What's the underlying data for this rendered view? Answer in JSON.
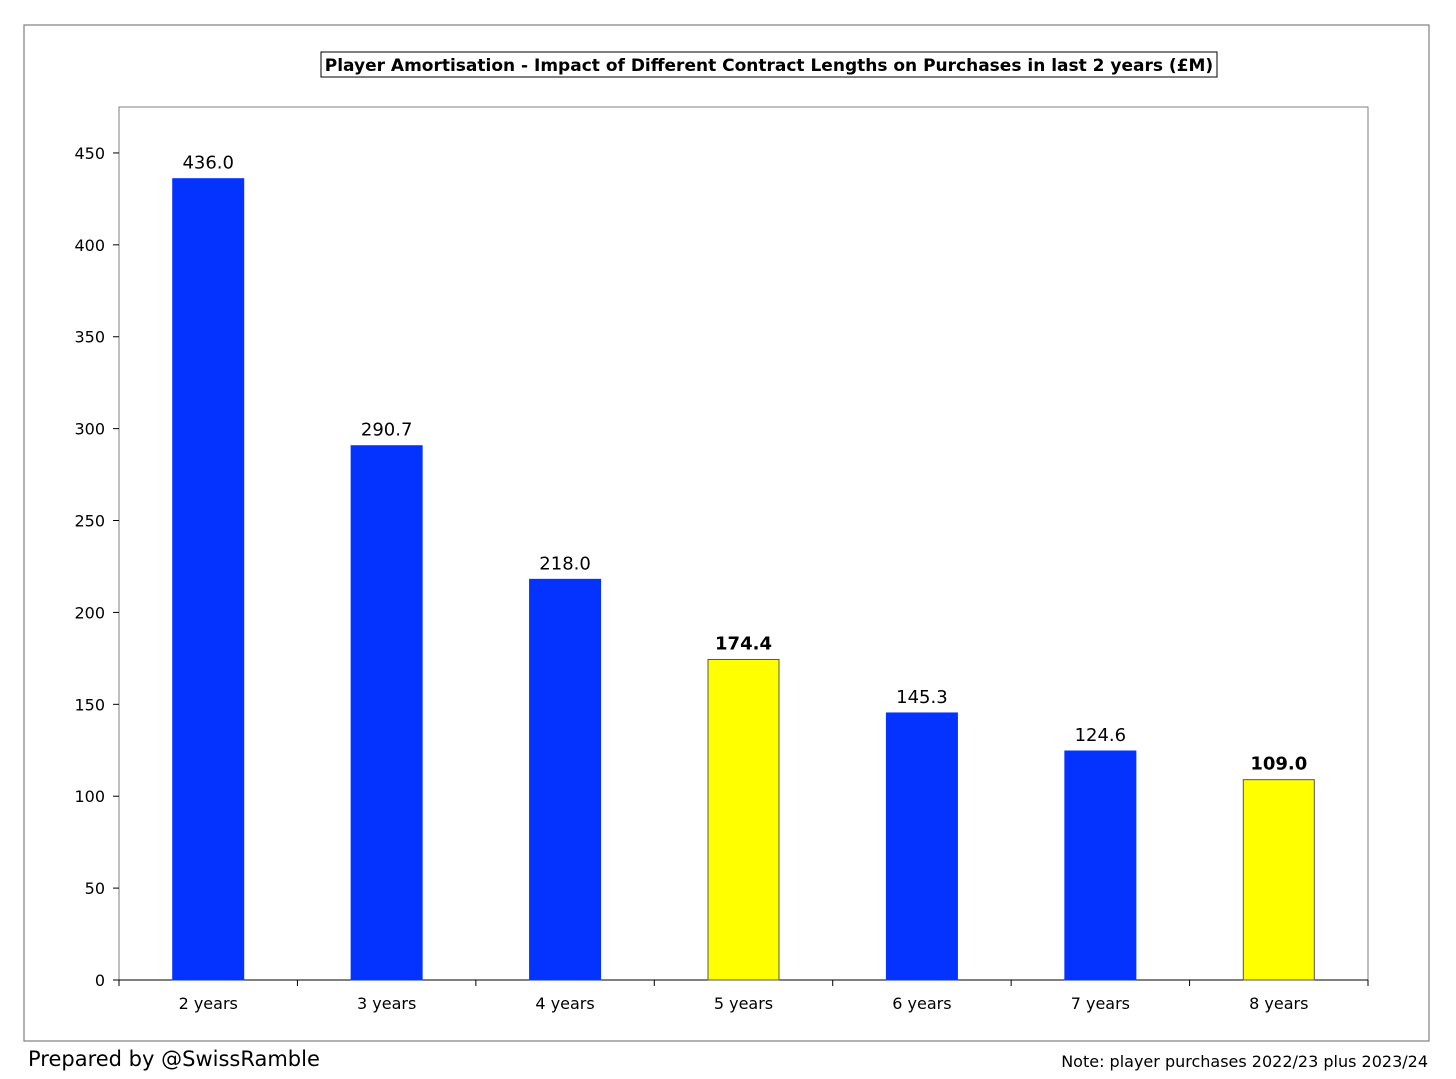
{
  "chart_data": {
    "type": "bar",
    "title": "Player Amortisation - Impact of Different Contract Lengths on Purchases in last 2 years (£M)",
    "categories": [
      "2 years",
      "3 years",
      "4 years",
      "5 years",
      "6 years",
      "7 years",
      "8 years"
    ],
    "values": [
      436.0,
      290.7,
      218.0,
      174.4,
      145.3,
      124.6,
      109.0
    ],
    "data_labels": [
      "436.0",
      "290.7",
      "218.0",
      "174.4",
      "145.3",
      "124.6",
      "109.0"
    ],
    "highlighted": [
      false,
      false,
      false,
      true,
      false,
      false,
      true
    ],
    "ylim": [
      0,
      475
    ],
    "yticks": [
      0,
      50,
      100,
      150,
      200,
      250,
      300,
      350,
      400,
      450
    ],
    "grid": false,
    "legend": "none",
    "colors": {
      "bar": "#0433ff",
      "highlight": "#ffff00"
    }
  },
  "footer": {
    "credit": "Prepared by @SwissRamble",
    "note": "Note: player purchases 2022/23 plus 2023/24"
  }
}
